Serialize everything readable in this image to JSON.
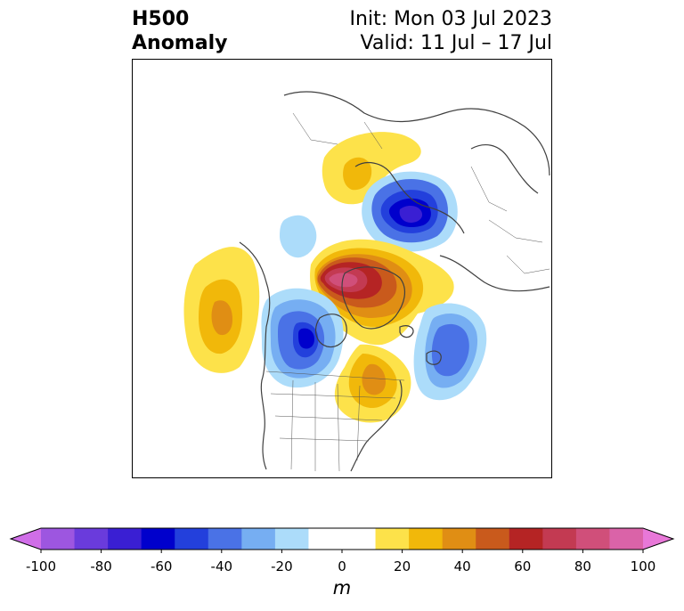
{
  "title": {
    "left_line1": "H500",
    "left_line2": "Anomaly",
    "right_line1": "Init: Mon 03 Jul 2023",
    "right_line2": "Valid: 11 Jul – 17 Jul"
  },
  "colorbar": {
    "unit": "m",
    "ticks": [
      "-100",
      "-80",
      "-60",
      "-40",
      "-20",
      "0",
      "20",
      "40",
      "60",
      "80",
      "100"
    ],
    "bin_colors": [
      "#9d56e0",
      "#6a3bdc",
      "#3a1fd3",
      "#0000cc",
      "#2340dc",
      "#4a72e6",
      "#76aef2",
      "#acdcfa",
      "#ffffff",
      "#ffffff",
      "#fde24a",
      "#f1b80a",
      "#e08e14",
      "#c95a1c",
      "#b52424",
      "#c33a52",
      "#d04f7a",
      "#da63a8"
    ],
    "low_extend_color": "#d06ee8",
    "high_extend_color": "#e878d8"
  },
  "map": {
    "projection": "north polar stereographic",
    "field": "500 hPa geopotential height anomaly"
  }
}
